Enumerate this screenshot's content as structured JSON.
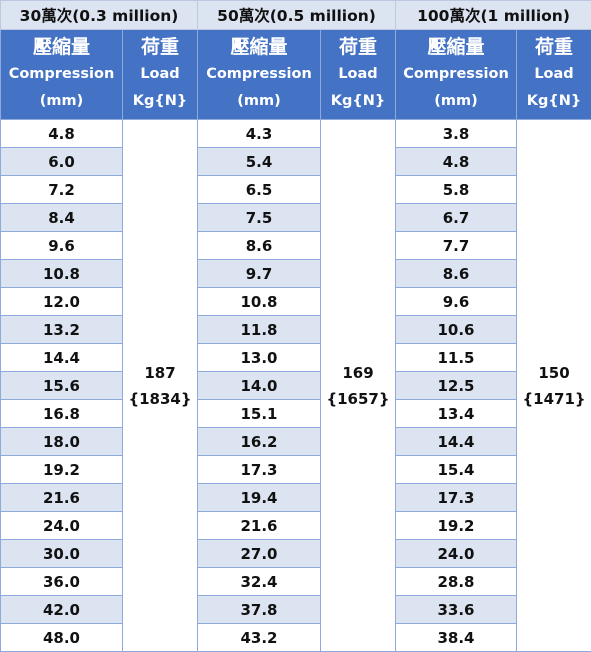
{
  "groups": [
    {
      "title": "30萬次(0.3 million)",
      "comp_header": [
        "壓縮量",
        "Compression",
        "(mm)"
      ],
      "load_header": [
        "荷重",
        "Load",
        "Kg{N}"
      ],
      "load_value": "187",
      "load_newton": "{1834}",
      "values": [
        "4.8",
        "6.0",
        "7.2",
        "8.4",
        "9.6",
        "10.8",
        "12.0",
        "13.2",
        "14.4",
        "15.6",
        "16.8",
        "18.0",
        "19.2",
        "21.6",
        "24.0",
        "30.0",
        "36.0",
        "42.0",
        "48.0"
      ]
    },
    {
      "title": "50萬次(0.5 million)",
      "comp_header": [
        "壓縮量",
        "Compression",
        "(mm)"
      ],
      "load_header": [
        "荷重",
        "Load",
        "Kg{N}"
      ],
      "load_value": "169",
      "load_newton": "{1657}",
      "values": [
        "4.3",
        "5.4",
        "6.5",
        "7.5",
        "8.6",
        "9.7",
        "10.8",
        "11.8",
        "13.0",
        "14.0",
        "15.1",
        "16.2",
        "17.3",
        "19.4",
        "21.6",
        "27.0",
        "32.4",
        "37.8",
        "43.2"
      ]
    },
    {
      "title": "100萬次(1 million)",
      "comp_header": [
        "壓縮量",
        "Compression",
        "(mm)"
      ],
      "load_header": [
        "荷重",
        "Load",
        "Kg{N}"
      ],
      "load_value": "150",
      "load_newton": "{1471}",
      "values": [
        "3.8",
        "4.8",
        "5.8",
        "6.7",
        "7.7",
        "8.6",
        "9.6",
        "10.6",
        "11.5",
        "12.5",
        "13.4",
        "14.4",
        "15.4",
        "17.3",
        "19.2",
        "24.0",
        "28.8",
        "33.6",
        "38.4"
      ]
    }
  ],
  "colors": {
    "header_blue": "#4472c4",
    "band_light": "#dce4f2",
    "border": "#8eaadb"
  }
}
